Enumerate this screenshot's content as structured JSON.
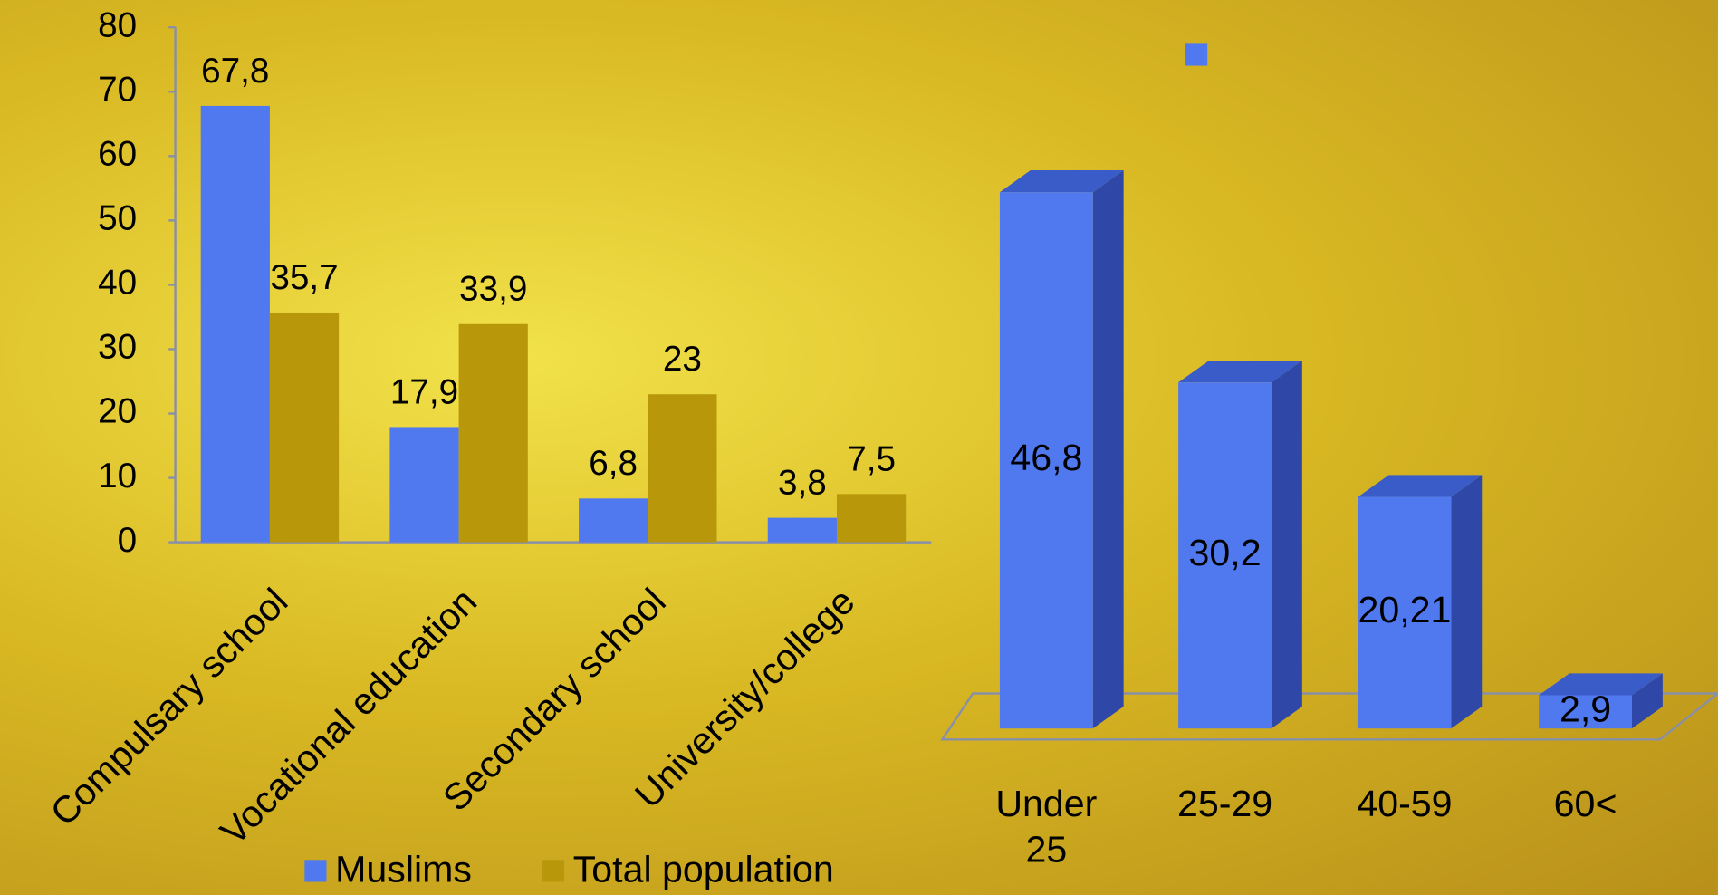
{
  "chart_data": [
    {
      "type": "bar",
      "categories": [
        "Compulsary school",
        "Vocational education",
        "Secondary school",
        "University/college"
      ],
      "series": [
        {
          "name": "Muslims",
          "color": "#5079f0",
          "values": [
            67.8,
            17.9,
            6.8,
            3.8
          ],
          "value_labels": [
            "67,8",
            "17,9",
            "6,8",
            "3,8"
          ]
        },
        {
          "name": "Total population",
          "color": "#b8980a",
          "values": [
            35.7,
            33.9,
            23,
            7.5
          ],
          "value_labels": [
            "35,7",
            "33,9",
            "23",
            "7,5"
          ]
        }
      ],
      "ylim": [
        0,
        80
      ],
      "yticks": [
        0,
        10,
        20,
        30,
        40,
        50,
        60,
        70,
        80
      ],
      "legend": "bottom"
    },
    {
      "type": "bar3d",
      "categories": [
        "Under 25",
        "25-29",
        "40-59",
        "60<"
      ],
      "values": [
        46.8,
        30.2,
        20.21,
        2.9
      ],
      "value_labels": [
        "46,8",
        "30,2",
        "20,21",
        "2,9"
      ],
      "color": "#5079f0",
      "ylim": [
        0,
        50
      ]
    }
  ]
}
